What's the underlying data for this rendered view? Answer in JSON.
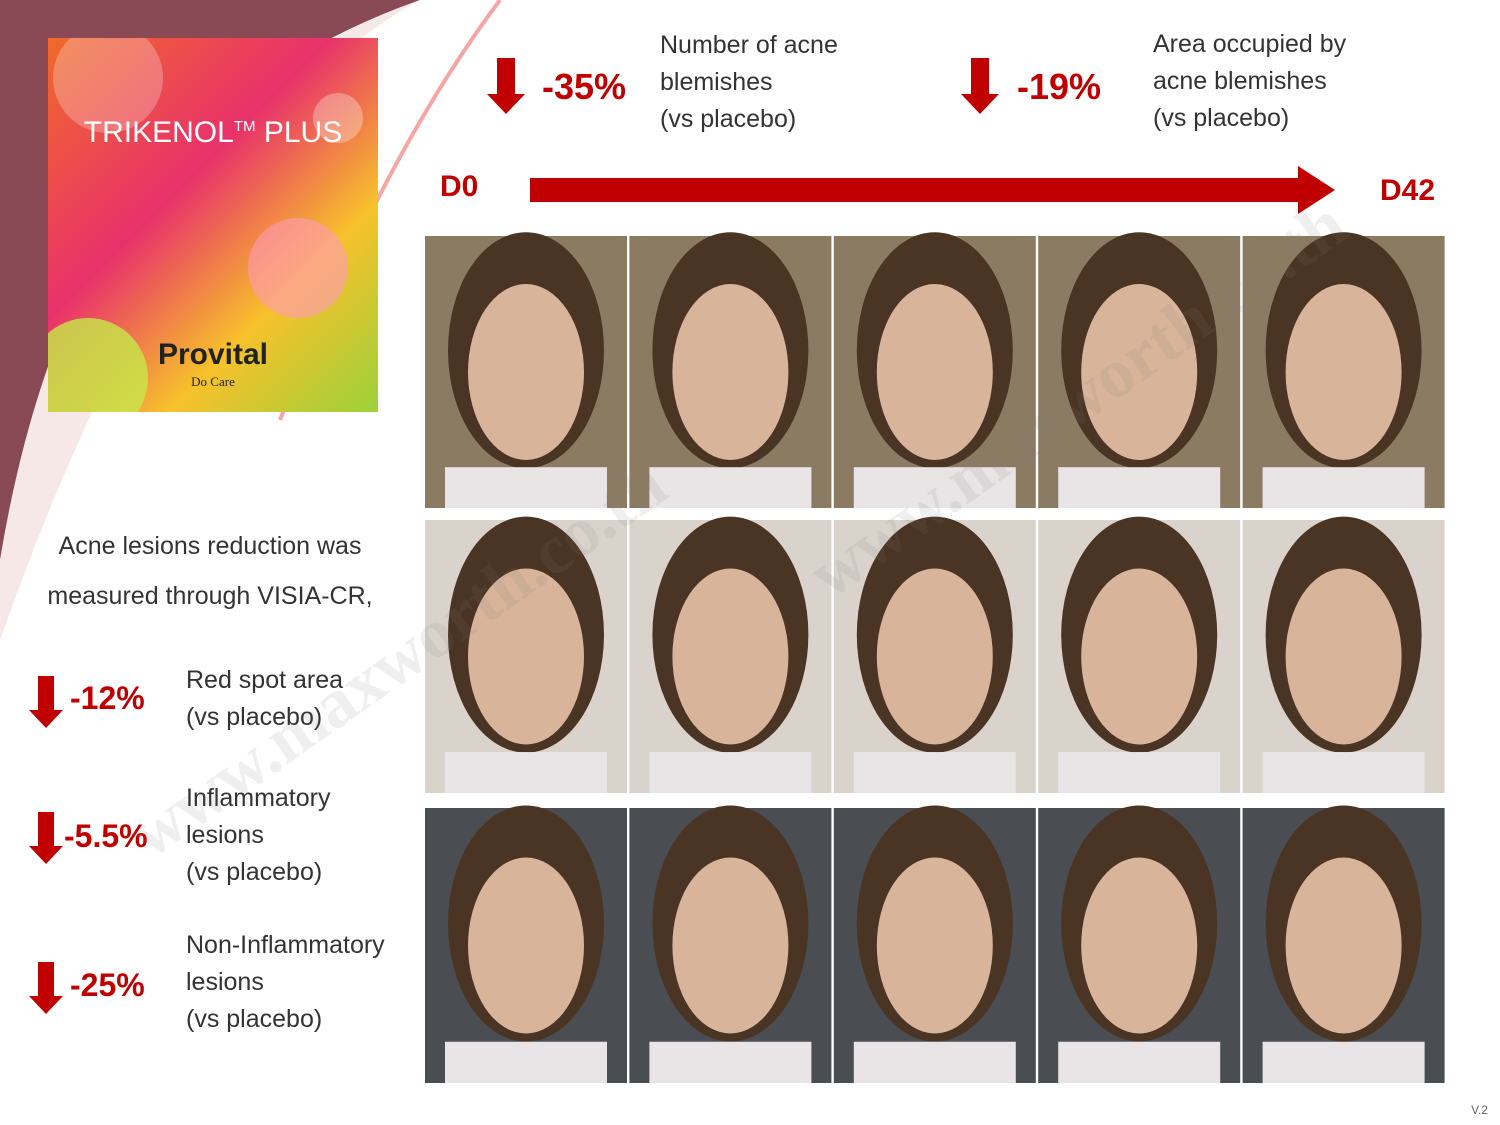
{
  "product": {
    "name": "TRIKENOL",
    "trademark": "TM",
    "suffix": "PLUS",
    "brand": "Provital",
    "tagline": "Do Care"
  },
  "top_stats": [
    {
      "value": "-35%",
      "lines": [
        "Number of acne",
        "blemishes",
        "(vs placebo)"
      ]
    },
    {
      "value": "-19%",
      "lines": [
        "Area occupied by",
        "acne blemishes",
        "(vs placebo)"
      ]
    }
  ],
  "timeline": {
    "start": "D0",
    "end": "D42"
  },
  "intro": {
    "lines": [
      "Acne lesions reduction was",
      "measured through VISIA-CR,"
    ]
  },
  "side_stats": [
    {
      "value": "-12%",
      "lines": [
        "Red spot area",
        "(vs placebo)"
      ]
    },
    {
      "value": "-5.5%",
      "lines": [
        "Inflammatory",
        "lesions",
        "(vs placebo)"
      ]
    },
    {
      "value": "-25%",
      "lines": [
        "Non-Inflammatory",
        "lesions",
        "(vs placebo)"
      ]
    }
  ],
  "watermark": "www.maxworth.co.th",
  "version": "V.2"
}
